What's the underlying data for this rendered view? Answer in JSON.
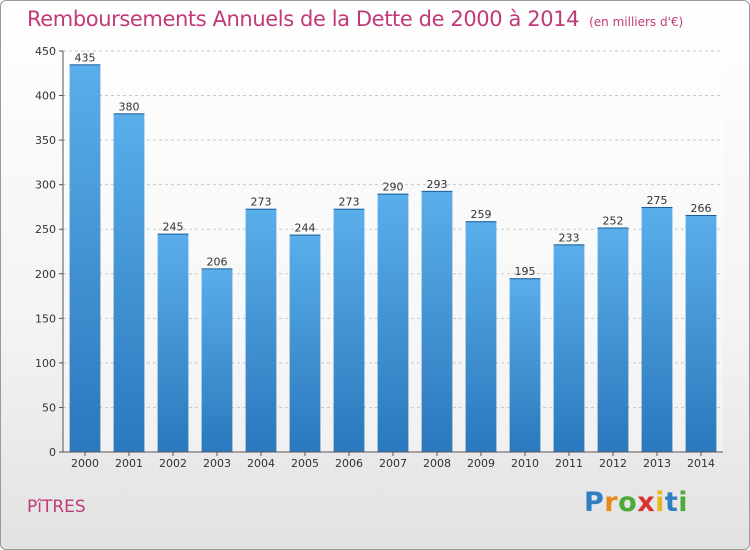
{
  "title": "Remboursements Annuels de la Dette de 2000 à 2014",
  "unit_note": "(en milliers d'€)",
  "commune": "PîTRES",
  "logo_letters": [
    "P",
    "r",
    "o",
    "x",
    "i",
    "t",
    "i"
  ],
  "colors": {
    "bar": "#4d9be0",
    "bar_dark": "#2f7ec2",
    "title": "#c03a79"
  },
  "chart_data": {
    "type": "bar",
    "title": "Remboursements Annuels de la Dette de 2000 à 2014",
    "categories": [
      "2000",
      "2001",
      "2002",
      "2003",
      "2004",
      "2005",
      "2006",
      "2007",
      "2008",
      "2009",
      "2010",
      "2011",
      "2012",
      "2013",
      "2014"
    ],
    "values": [
      435,
      380,
      245,
      206,
      273,
      244,
      273,
      290,
      293,
      259,
      195,
      233,
      252,
      275,
      266
    ],
    "ylim": [
      0,
      450
    ],
    "yticks": [
      0,
      50,
      100,
      150,
      200,
      250,
      300,
      350,
      400,
      450
    ],
    "grid": true,
    "xlabel": "",
    "ylabel": ""
  }
}
